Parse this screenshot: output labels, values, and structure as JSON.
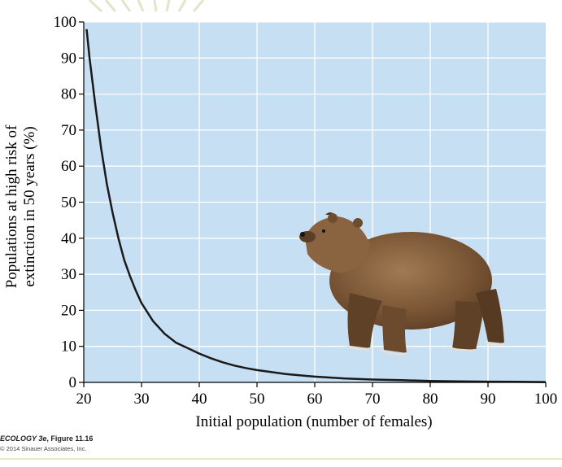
{
  "chart_data": {
    "type": "line",
    "xlabel": "Initial population (number of females)",
    "ylabel_line1": "Populations at high risk of",
    "ylabel_line2": "extinction in 50 years (%)",
    "xlim": [
      20,
      100
    ],
    "ylim": [
      0,
      100
    ],
    "xticks": [
      20,
      30,
      40,
      50,
      60,
      70,
      80,
      90,
      100
    ],
    "yticks": [
      0,
      10,
      20,
      30,
      40,
      50,
      60,
      70,
      80,
      90,
      100
    ],
    "grid": true,
    "series": [
      {
        "x": [
          20.5,
          21,
          22,
          23,
          24,
          25,
          26,
          27,
          28,
          29,
          30,
          32,
          34,
          36,
          38,
          40,
          42,
          44,
          46,
          48,
          50,
          55,
          60,
          65,
          70,
          75,
          80,
          85,
          90,
          95,
          100
        ],
        "y": [
          98,
          90,
          77,
          65,
          55,
          47,
          40,
          34,
          29.5,
          25.5,
          22,
          17,
          13.5,
          11,
          9.5,
          8,
          6.7,
          5.6,
          4.7,
          4,
          3.4,
          2.3,
          1.6,
          1.1,
          0.8,
          0.6,
          0.4,
          0.3,
          0.2,
          0.15,
          0.1
        ]
      }
    ],
    "colors": {
      "plot_background": "#c7dff3",
      "grid": "#ffffff",
      "line": "#1a1a1a"
    },
    "illustration": "grizzly-bear"
  },
  "credit": {
    "book": "ECOLOGY 3e",
    "figure": ", Figure 11.16",
    "copyright": "© 2014 Sinauer Associates, Inc."
  }
}
